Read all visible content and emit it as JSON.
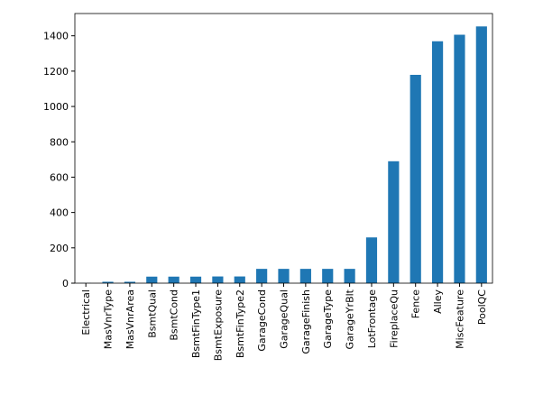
{
  "chart_data": {
    "type": "bar",
    "categories": [
      "Electrical",
      "MasVnrType",
      "MasVnrArea",
      "BsmtQual",
      "BsmtCond",
      "BsmtFinType1",
      "BsmtExposure",
      "BsmtFinType2",
      "GarageCond",
      "GarageQual",
      "GarageFinish",
      "GarageType",
      "GarageYrBlt",
      "LotFrontage",
      "FireplaceQu",
      "Fence",
      "Alley",
      "MiscFeature",
      "PoolQC"
    ],
    "values": [
      1,
      8,
      8,
      37,
      37,
      37,
      38,
      38,
      81,
      81,
      81,
      81,
      81,
      259,
      690,
      1179,
      1369,
      1406,
      1453
    ],
    "color": "#1f77b4",
    "ylim": [
      0,
      1526
    ],
    "yticks": [
      0,
      200,
      400,
      600,
      800,
      1000,
      1200,
      1400
    ],
    "grid": false
  }
}
